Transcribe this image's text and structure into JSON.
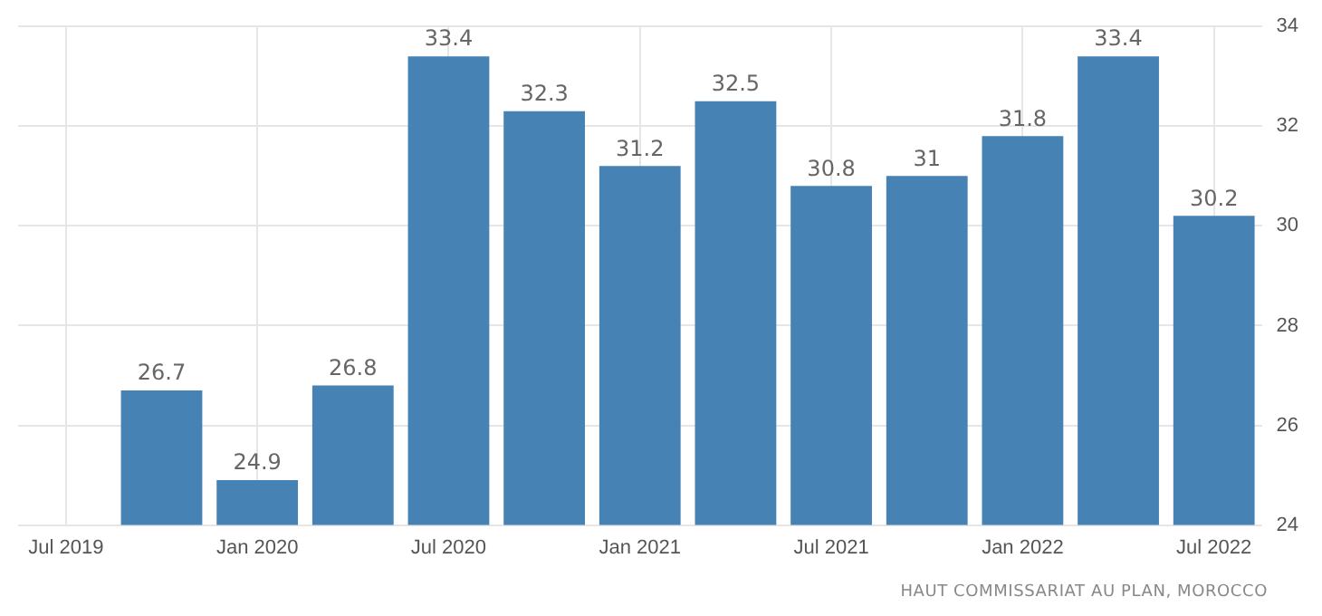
{
  "chart_data": {
    "type": "bar",
    "categories": [
      "Jul 2019",
      null,
      "Jan 2020",
      null,
      "Jul 2020",
      null,
      "Jan 2021",
      null,
      "Jul 2021",
      null,
      "Jan 2022",
      null,
      "Jul 2022"
    ],
    "values": [
      null,
      26.7,
      24.9,
      26.8,
      33.4,
      32.3,
      31.2,
      32.5,
      30.8,
      31,
      31.8,
      33.4,
      30.2
    ],
    "color": "#4682b4",
    "ylim": [
      24,
      34
    ],
    "yticks": [
      24,
      26,
      28,
      30,
      32,
      34
    ],
    "grid": true,
    "data_labels": true,
    "annotations": [
      "HAUT COMMISSARIAT AU PLAN, MOROCCO"
    ]
  }
}
